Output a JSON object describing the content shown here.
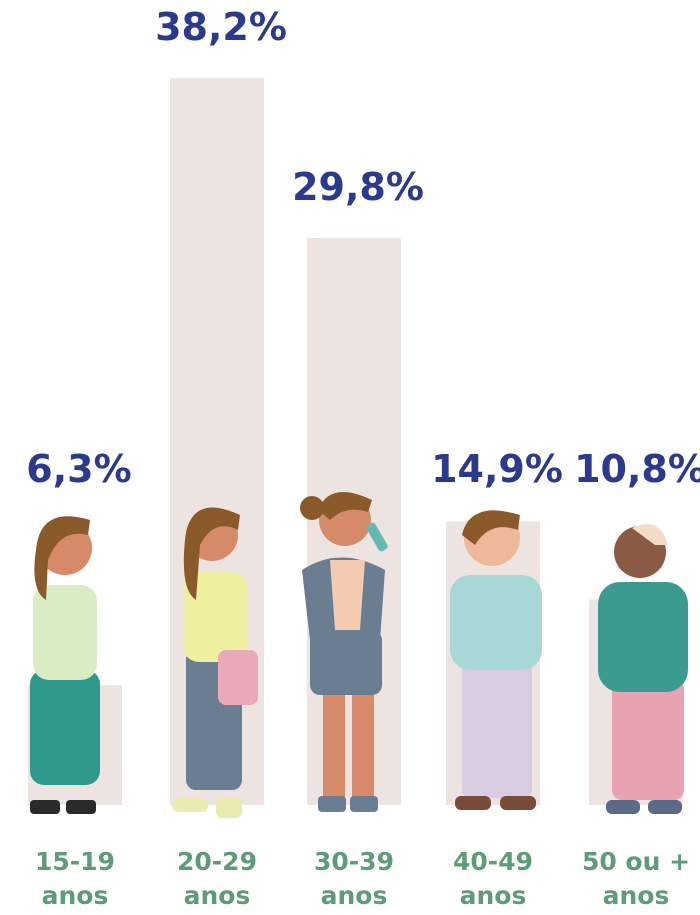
{
  "chart_data": {
    "type": "bar",
    "categories": [
      "15-19 anos",
      "20-29 anos",
      "30-39 anos",
      "40-49 anos",
      "50 ou + anos"
    ],
    "values": [
      6.3,
      38.2,
      29.8,
      14.9,
      10.8
    ],
    "value_labels": [
      "6,3%",
      "38,2%",
      "29,8%",
      "14,9%",
      "10,8%"
    ],
    "color": "#ede3e0",
    "ylim": [
      0,
      40
    ]
  }
}
